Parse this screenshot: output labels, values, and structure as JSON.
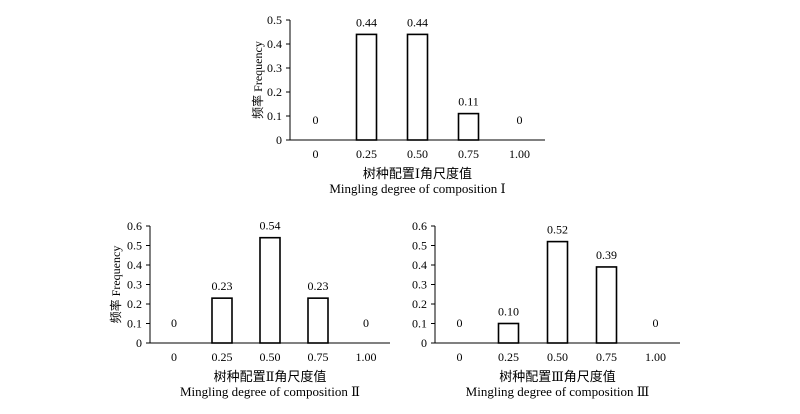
{
  "chart_data": [
    {
      "type": "bar",
      "categories": [
        "0",
        "0.25",
        "0.50",
        "0.75",
        "1.00"
      ],
      "values": [
        0,
        0.44,
        0.44,
        0.11,
        0
      ],
      "data_labels": [
        "0",
        "0.44",
        "0.44",
        "0.11",
        "0"
      ],
      "xlabel": "树种配置Ⅰ角尺度值",
      "xlabel_en": "Mingling degree of composition Ⅰ",
      "ylabel": "频率 Frequency",
      "ylim": [
        0,
        0.5
      ],
      "yticks": [
        "0",
        "0.1",
        "0.2",
        "0.3",
        "0.4",
        "0.5"
      ],
      "grid": false
    },
    {
      "type": "bar",
      "categories": [
        "0",
        "0.25",
        "0.50",
        "0.75",
        "1.00"
      ],
      "values": [
        0,
        0.23,
        0.54,
        0.23,
        0
      ],
      "data_labels": [
        "0",
        "0.23",
        "0.54",
        "0.23",
        "0"
      ],
      "xlabel": "树种配置Ⅱ角尺度值",
      "xlabel_en": "Mingling degree of composition Ⅱ",
      "ylabel": "频率 Frequency",
      "ylim": [
        0,
        0.6
      ],
      "yticks": [
        "0",
        "0.1",
        "0.2",
        "0.3",
        "0.4",
        "0.5",
        "0.6"
      ],
      "grid": false
    },
    {
      "type": "bar",
      "categories": [
        "0",
        "0.25",
        "0.50",
        "0.75",
        "1.00"
      ],
      "values": [
        0,
        0.1,
        0.52,
        0.39,
        0
      ],
      "data_labels": [
        "0",
        "0.10",
        "0.52",
        "0.39",
        "0"
      ],
      "xlabel": "树种配置Ⅲ角尺度值",
      "xlabel_en": "Mingling degree of composition Ⅲ",
      "ylabel": "",
      "ylim": [
        0,
        0.6
      ],
      "yticks": [
        "0",
        "0.1",
        "0.2",
        "0.3",
        "0.4",
        "0.5",
        "0.6"
      ],
      "grid": false
    }
  ]
}
